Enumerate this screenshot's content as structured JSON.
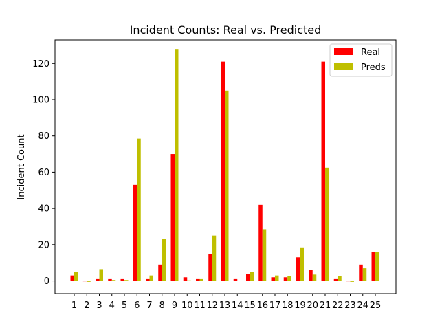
{
  "chart_data": {
    "type": "bar",
    "title": "Incident Counts: Real vs. Predicted",
    "xlabel": "",
    "ylabel": "Incident Count",
    "categories": [
      "1",
      "2",
      "3",
      "4",
      "5",
      "6",
      "7",
      "8",
      "9",
      "10",
      "11",
      "12",
      "13",
      "14",
      "15",
      "16",
      "17",
      "18",
      "19",
      "20",
      "21",
      "22",
      "23",
      "24",
      "25"
    ],
    "series": [
      {
        "name": "Real",
        "color": "#ff0000",
        "values": [
          3,
          0,
          1,
          1,
          1,
          53,
          1,
          9,
          70,
          2,
          1,
          15,
          121,
          1,
          4,
          42,
          2,
          2,
          13,
          6,
          121,
          1,
          0,
          9,
          16
        ]
      },
      {
        "name": "Preds",
        "color": "#bfbf00",
        "values": [
          5,
          -0.5,
          6.5,
          0.5,
          0.5,
          78.5,
          3,
          23,
          128,
          0.3,
          1,
          25,
          105,
          0.2,
          5,
          28.5,
          3,
          2.5,
          18.5,
          3.5,
          62.5,
          2.5,
          -0.5,
          7,
          16
        ]
      }
    ],
    "ylim": [
      -7,
      133
    ],
    "yticks": [
      0,
      20,
      40,
      60,
      80,
      100,
      120
    ],
    "grid": false,
    "legend_position": "top-right"
  }
}
